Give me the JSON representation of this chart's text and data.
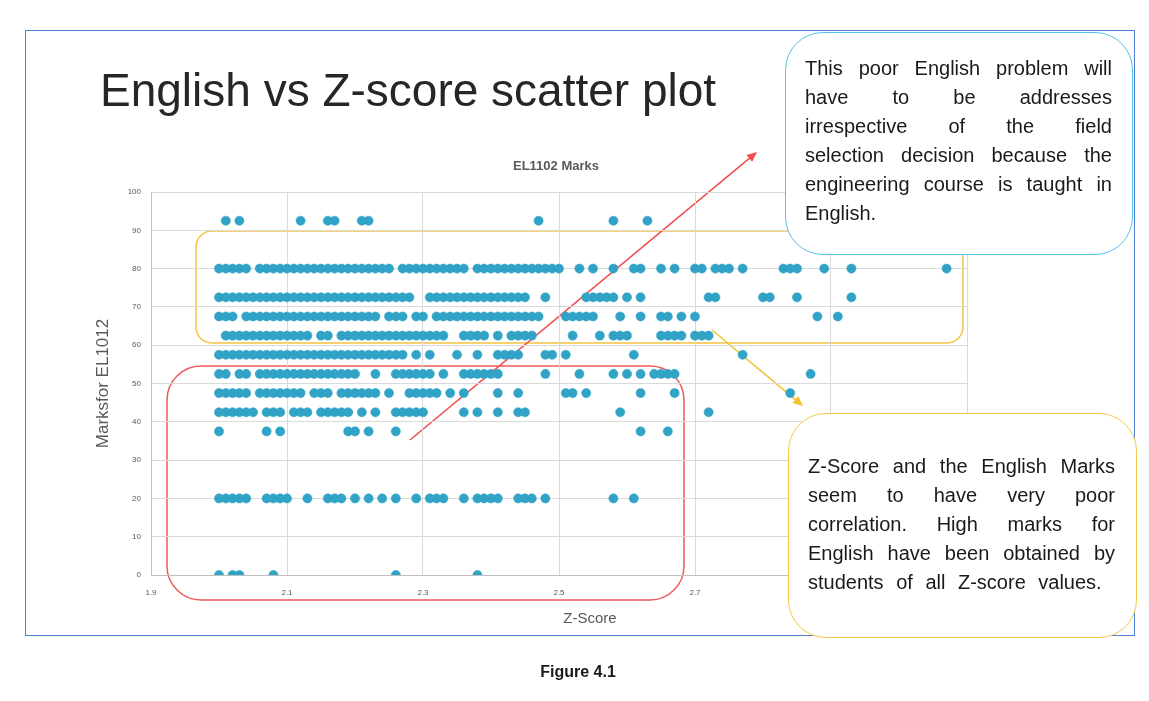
{
  "chart_data": {
    "type": "scatter",
    "title": "English vs Z-score scatter plot",
    "subtitle": "EL1102 Marks",
    "xlabel": "Z-Score",
    "ylabel": "Marksfor EL1012",
    "annotations": [
      "This poor English problem will have to be addresses irrespective of the field selection decision because the engineering course is taught in English.",
      "Z-Score and the English Marks seem to have very poor correlation. High marks for English have been obtained by students of all Z-score values.",
      "Figure 4.1"
    ],
    "xlim": [
      1.9,
      3.1
    ],
    "xticks": [
      1.9,
      2.1,
      2.3,
      2.5,
      2.7,
      {
        "value": 2.9,
        "label": null
      },
      {
        "value": 3.1,
        "label": null
      }
    ],
    "ylim": [
      0,
      100
    ],
    "yticks": [
      0,
      10,
      20,
      30,
      40,
      50,
      60,
      70,
      80,
      90,
      100
    ],
    "grid": true,
    "marker": "circle",
    "series": [
      {
        "color": "#30a3c6",
        "x": [
          2.01,
          2.03,
          2.12,
          2.16,
          2.17,
          2.21,
          2.22,
          2.47,
          2.58,
          2.63
        ],
        "values": [
          92.5,
          92.5,
          92.5,
          92.5,
          92.5,
          92.5,
          92.5,
          92.5,
          92.5,
          92.5
        ]
      },
      {
        "color": "#30a3c6",
        "x": [
          2.0,
          2.01,
          2.02,
          2.03,
          2.04,
          2.06,
          2.07,
          2.08,
          2.09,
          2.1,
          2.11,
          2.12,
          2.13,
          2.14,
          2.15,
          2.16,
          2.17,
          2.18,
          2.19,
          2.2,
          2.21,
          2.22,
          2.23,
          2.24,
          2.25,
          2.27,
          2.28,
          2.29,
          2.3,
          2.31,
          2.32,
          2.33,
          2.34,
          2.35,
          2.36,
          2.38,
          2.39,
          2.4,
          2.41,
          2.42,
          2.43,
          2.44,
          2.45,
          2.46,
          2.47,
          2.48,
          2.49,
          2.5,
          2.53,
          2.55,
          2.58,
          2.61,
          2.62,
          2.65,
          2.67,
          2.7,
          2.71,
          2.73,
          2.74,
          2.75,
          2.77,
          2.83,
          2.84,
          2.85,
          2.89,
          2.93,
          3.07
        ],
        "values": [
          80,
          80,
          80,
          80,
          80,
          80,
          80,
          80,
          80,
          80,
          80,
          80,
          80,
          80,
          80,
          80,
          80,
          80,
          80,
          80,
          80,
          80,
          80,
          80,
          80,
          80,
          80,
          80,
          80,
          80,
          80,
          80,
          80,
          80,
          80,
          80,
          80,
          80,
          80,
          80,
          80,
          80,
          80,
          80,
          80,
          80,
          80,
          80,
          80,
          80,
          80,
          80,
          80,
          80,
          80,
          80,
          80,
          80,
          80,
          80,
          80,
          80,
          80,
          80,
          80,
          80,
          80
        ]
      },
      {
        "color": "#30a3c6",
        "x": [
          2.0,
          2.01,
          2.02,
          2.03,
          2.04,
          2.05,
          2.06,
          2.07,
          2.08,
          2.09,
          2.1,
          2.11,
          2.12,
          2.13,
          2.14,
          2.15,
          2.16,
          2.17,
          2.18,
          2.19,
          2.2,
          2.21,
          2.22,
          2.23,
          2.24,
          2.25,
          2.26,
          2.27,
          2.28,
          2.31,
          2.32,
          2.33,
          2.34,
          2.35,
          2.36,
          2.37,
          2.38,
          2.39,
          2.4,
          2.41,
          2.42,
          2.43,
          2.44,
          2.45,
          2.48,
          2.54,
          2.55,
          2.56,
          2.57,
          2.58,
          2.6,
          2.62,
          2.72,
          2.73,
          2.8,
          2.81,
          2.85,
          2.93
        ],
        "values": [
          72.5,
          72.5,
          72.5,
          72.5,
          72.5,
          72.5,
          72.5,
          72.5,
          72.5,
          72.5,
          72.5,
          72.5,
          72.5,
          72.5,
          72.5,
          72.5,
          72.5,
          72.5,
          72.5,
          72.5,
          72.5,
          72.5,
          72.5,
          72.5,
          72.5,
          72.5,
          72.5,
          72.5,
          72.5,
          72.5,
          72.5,
          72.5,
          72.5,
          72.5,
          72.5,
          72.5,
          72.5,
          72.5,
          72.5,
          72.5,
          72.5,
          72.5,
          72.5,
          72.5,
          72.5,
          72.5,
          72.5,
          72.5,
          72.5,
          72.5,
          72.5,
          72.5,
          72.5,
          72.5,
          72.5,
          72.5,
          72.5,
          72.5
        ]
      },
      {
        "color": "#30a3c6",
        "x": [
          2.0,
          2.01,
          2.02,
          2.04,
          2.05,
          2.06,
          2.07,
          2.08,
          2.09,
          2.1,
          2.11,
          2.12,
          2.13,
          2.14,
          2.15,
          2.16,
          2.17,
          2.18,
          2.19,
          2.2,
          2.21,
          2.22,
          2.23,
          2.25,
          2.26,
          2.27,
          2.29,
          2.3,
          2.32,
          2.33,
          2.34,
          2.35,
          2.36,
          2.37,
          2.38,
          2.39,
          2.4,
          2.41,
          2.42,
          2.43,
          2.44,
          2.45,
          2.46,
          2.47,
          2.51,
          2.52,
          2.53,
          2.54,
          2.55,
          2.59,
          2.62,
          2.65,
          2.66,
          2.68,
          2.7,
          2.88,
          2.91
        ],
        "values": [
          67.5,
          67.5,
          67.5,
          67.5,
          67.5,
          67.5,
          67.5,
          67.5,
          67.5,
          67.5,
          67.5,
          67.5,
          67.5,
          67.5,
          67.5,
          67.5,
          67.5,
          67.5,
          67.5,
          67.5,
          67.5,
          67.5,
          67.5,
          67.5,
          67.5,
          67.5,
          67.5,
          67.5,
          67.5,
          67.5,
          67.5,
          67.5,
          67.5,
          67.5,
          67.5,
          67.5,
          67.5,
          67.5,
          67.5,
          67.5,
          67.5,
          67.5,
          67.5,
          67.5,
          67.5,
          67.5,
          67.5,
          67.5,
          67.5,
          67.5,
          67.5,
          67.5,
          67.5,
          67.5,
          67.5,
          67.5,
          67.5
        ]
      },
      {
        "color": "#30a3c6",
        "x": [
          2.01,
          2.02,
          2.03,
          2.04,
          2.05,
          2.06,
          2.07,
          2.08,
          2.09,
          2.1,
          2.11,
          2.12,
          2.13,
          2.15,
          2.16,
          2.18,
          2.19,
          2.2,
          2.21,
          2.22,
          2.23,
          2.24,
          2.25,
          2.26,
          2.27,
          2.28,
          2.29,
          2.3,
          2.31,
          2.32,
          2.33,
          2.36,
          2.37,
          2.38,
          2.39,
          2.41,
          2.43,
          2.44,
          2.45,
          2.46,
          2.52,
          2.56,
          2.58,
          2.59,
          2.6,
          2.65,
          2.66,
          2.67,
          2.68,
          2.7,
          2.71,
          2.72
        ],
        "values": [
          62.5,
          62.5,
          62.5,
          62.5,
          62.5,
          62.5,
          62.5,
          62.5,
          62.5,
          62.5,
          62.5,
          62.5,
          62.5,
          62.5,
          62.5,
          62.5,
          62.5,
          62.5,
          62.5,
          62.5,
          62.5,
          62.5,
          62.5,
          62.5,
          62.5,
          62.5,
          62.5,
          62.5,
          62.5,
          62.5,
          62.5,
          62.5,
          62.5,
          62.5,
          62.5,
          62.5,
          62.5,
          62.5,
          62.5,
          62.5,
          62.5,
          62.5,
          62.5,
          62.5,
          62.5,
          62.5,
          62.5,
          62.5,
          62.5,
          62.5,
          62.5,
          62.5
        ]
      },
      {
        "color": "#30a3c6",
        "x": [
          2.0,
          2.01,
          2.02,
          2.03,
          2.04,
          2.05,
          2.06,
          2.07,
          2.08,
          2.09,
          2.1,
          2.11,
          2.12,
          2.13,
          2.14,
          2.15,
          2.16,
          2.17,
          2.18,
          2.19,
          2.2,
          2.21,
          2.22,
          2.23,
          2.24,
          2.25,
          2.26,
          2.27,
          2.29,
          2.31,
          2.35,
          2.38,
          2.41,
          2.42,
          2.43,
          2.44,
          2.48,
          2.49,
          2.51,
          2.61,
          2.77
        ],
        "values": [
          57.5,
          57.5,
          57.5,
          57.5,
          57.5,
          57.5,
          57.5,
          57.5,
          57.5,
          57.5,
          57.5,
          57.5,
          57.5,
          57.5,
          57.5,
          57.5,
          57.5,
          57.5,
          57.5,
          57.5,
          57.5,
          57.5,
          57.5,
          57.5,
          57.5,
          57.5,
          57.5,
          57.5,
          57.5,
          57.5,
          57.5,
          57.5,
          57.5,
          57.5,
          57.5,
          57.5,
          57.5,
          57.5,
          57.5,
          57.5,
          57.5
        ]
      },
      {
        "color": "#30a3c6",
        "x": [
          2.0,
          2.01,
          2.03,
          2.04,
          2.06,
          2.07,
          2.08,
          2.09,
          2.1,
          2.11,
          2.12,
          2.13,
          2.14,
          2.15,
          2.16,
          2.17,
          2.18,
          2.19,
          2.2,
          2.23,
          2.26,
          2.27,
          2.28,
          2.29,
          2.3,
          2.31,
          2.33,
          2.36,
          2.37,
          2.38,
          2.39,
          2.4,
          2.41,
          2.48,
          2.53,
          2.58,
          2.6,
          2.62,
          2.64,
          2.65,
          2.66,
          2.67,
          2.87
        ],
        "values": [
          52.5,
          52.5,
          52.5,
          52.5,
          52.5,
          52.5,
          52.5,
          52.5,
          52.5,
          52.5,
          52.5,
          52.5,
          52.5,
          52.5,
          52.5,
          52.5,
          52.5,
          52.5,
          52.5,
          52.5,
          52.5,
          52.5,
          52.5,
          52.5,
          52.5,
          52.5,
          52.5,
          52.5,
          52.5,
          52.5,
          52.5,
          52.5,
          52.5,
          52.5,
          52.5,
          52.5,
          52.5,
          52.5,
          52.5,
          52.5,
          52.5,
          52.5,
          52.5
        ]
      },
      {
        "color": "#30a3c6",
        "x": [
          2.0,
          2.01,
          2.02,
          2.03,
          2.04,
          2.06,
          2.07,
          2.08,
          2.09,
          2.1,
          2.11,
          2.12,
          2.14,
          2.15,
          2.16,
          2.18,
          2.19,
          2.2,
          2.21,
          2.22,
          2.23,
          2.25,
          2.28,
          2.29,
          2.3,
          2.31,
          2.32,
          2.34,
          2.36,
          2.41,
          2.44,
          2.51,
          2.52,
          2.54,
          2.62,
          2.67,
          2.84
        ],
        "values": [
          47.5,
          47.5,
          47.5,
          47.5,
          47.5,
          47.5,
          47.5,
          47.5,
          47.5,
          47.5,
          47.5,
          47.5,
          47.5,
          47.5,
          47.5,
          47.5,
          47.5,
          47.5,
          47.5,
          47.5,
          47.5,
          47.5,
          47.5,
          47.5,
          47.5,
          47.5,
          47.5,
          47.5,
          47.5,
          47.5,
          47.5,
          47.5,
          47.5,
          47.5,
          47.5,
          47.5,
          47.5
        ]
      },
      {
        "color": "#30a3c6",
        "x": [
          2.0,
          2.01,
          2.02,
          2.03,
          2.04,
          2.05,
          2.07,
          2.08,
          2.09,
          2.11,
          2.12,
          2.13,
          2.15,
          2.16,
          2.17,
          2.18,
          2.19,
          2.21,
          2.23,
          2.26,
          2.27,
          2.28,
          2.29,
          2.3,
          2.36,
          2.38,
          2.41,
          2.44,
          2.45,
          2.59,
          2.72
        ],
        "values": [
          42.5,
          42.5,
          42.5,
          42.5,
          42.5,
          42.5,
          42.5,
          42.5,
          42.5,
          42.5,
          42.5,
          42.5,
          42.5,
          42.5,
          42.5,
          42.5,
          42.5,
          42.5,
          42.5,
          42.5,
          42.5,
          42.5,
          42.5,
          42.5,
          42.5,
          42.5,
          42.5,
          42.5,
          42.5,
          42.5,
          42.5
        ]
      },
      {
        "color": "#30a3c6",
        "x": [
          2.0,
          2.07,
          2.09,
          2.19,
          2.2,
          2.22,
          2.26,
          2.62,
          2.66
        ],
        "values": [
          37.5,
          37.5,
          37.5,
          37.5,
          37.5,
          37.5,
          37.5,
          37.5,
          37.5
        ]
      },
      {
        "color": "#30a3c6",
        "x": [
          2.0,
          2.01,
          2.02,
          2.03,
          2.04,
          2.07,
          2.08,
          2.09,
          2.1,
          2.13,
          2.16,
          2.17,
          2.18,
          2.2,
          2.22,
          2.24,
          2.26,
          2.29,
          2.31,
          2.32,
          2.33,
          2.36,
          2.38,
          2.39,
          2.4,
          2.41,
          2.44,
          2.45,
          2.46,
          2.48,
          2.58,
          2.61
        ],
        "values": [
          20,
          20,
          20,
          20,
          20,
          20,
          20,
          20,
          20,
          20,
          20,
          20,
          20,
          20,
          20,
          20,
          20,
          20,
          20,
          20,
          20,
          20,
          20,
          20,
          20,
          20,
          20,
          20,
          20,
          20,
          20,
          20
        ]
      },
      {
        "color": "#30a3c6",
        "x": [
          2.0,
          2.02,
          2.03,
          2.08,
          2.26,
          2.38
        ],
        "values": [
          0,
          0,
          0,
          0,
          0,
          0
        ]
      }
    ]
  }
}
